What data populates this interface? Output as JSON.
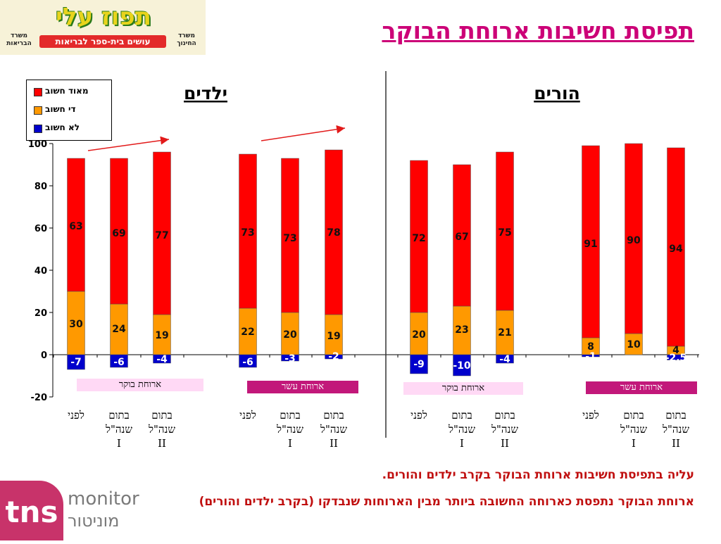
{
  "logo": {
    "title": "תפוז עלי",
    "banner": "עושים בית-ספר לבריאות",
    "ministry_health": "משרד הבריאות",
    "ministry_education": "משרד החינוך"
  },
  "page_title": "תפיסת חשיבות ארוחת הבוקר",
  "legend": [
    {
      "label": "מאוד חשוב",
      "color": "#ff0000"
    },
    {
      "label": "די חשוב",
      "color": "#ff9900"
    },
    {
      "label": "לא חשוב",
      "color": "#0000cc"
    }
  ],
  "panels": {
    "children": "ילדים",
    "parents": "הורים"
  },
  "group_labels": [
    "ארוחת בוקר",
    "ארוחת עשר",
    "ארוחת בוקר",
    "ארוחת עשר"
  ],
  "categories": [
    [
      "לפני"
    ],
    [
      "בתום",
      "שנה\"ל",
      "I"
    ],
    [
      "בתום",
      "שנה\"ל",
      "II"
    ],
    [
      "לפני"
    ],
    [
      "בתום",
      "שנה\"ל",
      "I"
    ],
    [
      "בתום",
      "שנה\"ל",
      "II"
    ],
    [
      "לפני"
    ],
    [
      "בתום",
      "שנה\"ל",
      "I"
    ],
    [
      "בתום",
      "שנה\"ל",
      "II"
    ],
    [
      "לפני"
    ],
    [
      "בתום",
      "שנה\"ל",
      "I"
    ],
    [
      "בתום",
      "שנה\"ל",
      "II"
    ]
  ],
  "chart_data": {
    "type": "bar",
    "stacked": true,
    "ylim": [
      -20,
      100
    ],
    "yticks": [
      -20,
      0,
      20,
      40,
      60,
      80,
      100
    ],
    "series": [
      {
        "name": "מאוד חשוב",
        "values": [
          63,
          69,
          77,
          73,
          73,
          78,
          72,
          67,
          75,
          91,
          90,
          94
        ]
      },
      {
        "name": "די חשוב",
        "values": [
          30,
          24,
          19,
          22,
          20,
          19,
          20,
          23,
          21,
          8,
          10,
          4
        ]
      },
      {
        "name": "לא חשוב",
        "values": [
          -7,
          -6,
          -4,
          -6,
          -3,
          -2,
          -9,
          -10,
          -4,
          -1,
          0,
          -2.5
        ]
      }
    ],
    "labels": {
      "very": [
        "63",
        "69",
        "77",
        "73",
        "73",
        "78",
        "72",
        "67",
        "75",
        "91",
        "90",
        "94"
      ],
      "quite": [
        "30",
        "24",
        "19",
        "22",
        "20",
        "19",
        "20",
        "23",
        "21",
        "8",
        "10",
        "4"
      ],
      "not": [
        "-7",
        "-6",
        "-4",
        "-6",
        "-3",
        "-2",
        "-9",
        "-10",
        "-4",
        "-1",
        "",
        "-2.5"
      ]
    },
    "grid": false,
    "legend_position": "top-left"
  },
  "summary": [
    "עליה בתפיסת חשיבות ארוחת הבוקר בקרב ילדים והורים.",
    "ארוחת הבוקר נתפסת כארוחה החשובה ביותר מבין הארוחות שנבדקו (בקרב ילדים והורים)"
  ],
  "tns": {
    "logo": "tns",
    "monitor": "monitor",
    "monitor_he": "מוניטור"
  }
}
